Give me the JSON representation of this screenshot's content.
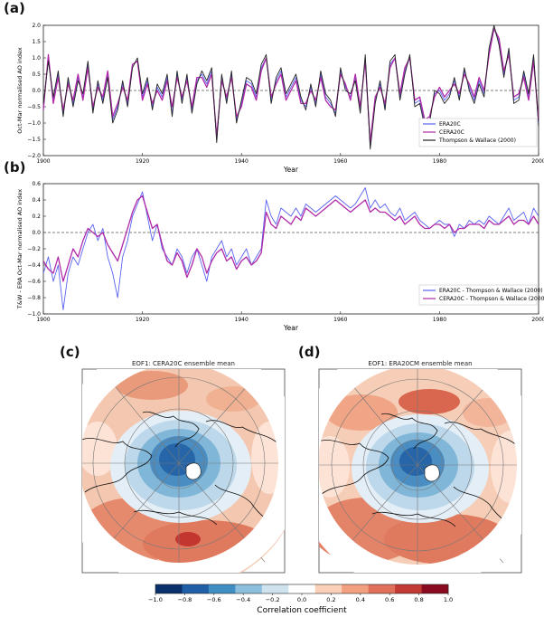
{
  "chart_data": [
    {
      "type": "line",
      "panel": "(a)",
      "title": "",
      "xlabel": "Year",
      "ylabel": "Oct-Mar normalised AO index",
      "xlim": [
        1900,
        2000
      ],
      "ylim": [
        -2.0,
        2.0
      ],
      "xticks": [
        1900,
        1920,
        1940,
        1960,
        1980,
        2000
      ],
      "yticks": [
        -2.0,
        -1.5,
        -1.0,
        -0.5,
        0.0,
        0.5,
        1.0,
        1.5,
        2.0
      ],
      "ytick_labels": [
        "−2.0",
        "−1.5",
        "−1.0",
        "−0.5",
        "0.0",
        "0.5",
        "1.0",
        "1.5",
        "2.0"
      ],
      "zero_line": "dashed",
      "legend_position": "bottom-right",
      "legend": [
        "ERA20C",
        "CERA20C",
        "Thompson & Wallace (2000)"
      ],
      "colors": {
        "ERA20C": "#5a62f0",
        "CERA20C": "#b02aa8",
        "Thompson & Wallace (2000)": "#222222"
      },
      "series": [
        {
          "name": "ERA20C",
          "values": [
            -0.5,
            1.0,
            -0.3,
            0.5,
            -0.7,
            0.3,
            -0.4,
            0.4,
            -0.2,
            0.8,
            -0.6,
            0.2,
            -0.3,
            0.5,
            -0.9,
            -0.5,
            0.2,
            -0.4,
            0.8,
            0.9,
            -0.2,
            0.3,
            -0.5,
            0.1,
            -0.2,
            0.4,
            -0.7,
            0.5,
            -0.3,
            0.4,
            -0.6,
            0.3,
            0.5,
            0.2,
            0.6,
            -1.5,
            0.4,
            -0.3,
            0.5,
            -0.9,
            -0.4,
            0.3,
            0.2,
            -0.2,
            0.7,
            1.0,
            -0.3,
            0.3,
            0.6,
            -0.2,
            0.1,
            0.4,
            -0.3,
            -0.5,
            0.1,
            -0.4,
            0.5,
            -0.2,
            -0.4,
            -0.7,
            0.6,
            0.1,
            -0.2,
            0.4,
            -0.6,
            1.0,
            -1.7,
            -0.3,
            0.2,
            -0.5,
            0.8,
            1.0,
            -0.2,
            0.6,
            1.0,
            -0.4,
            -0.3,
            -1.0,
            -0.9,
            -0.1,
            0.0,
            -0.3,
            -0.1,
            0.3,
            -0.2,
            0.6,
            0.1,
            -0.3,
            0.3,
            -0.1,
            1.2,
            1.9,
            1.5,
            0.5,
            1.2,
            -0.3,
            -0.2,
            0.5,
            -0.2,
            1.0,
            -1.0
          ]
        },
        {
          "name": "CERA20C",
          "values": [
            -0.6,
            1.1,
            -0.4,
            0.4,
            -0.6,
            0.2,
            -0.3,
            0.5,
            -0.3,
            0.7,
            -0.5,
            0.1,
            -0.2,
            0.6,
            -0.8,
            -0.4,
            0.1,
            -0.3,
            0.8,
            0.9,
            -0.3,
            0.2,
            -0.4,
            0.0,
            -0.3,
            0.3,
            -0.5,
            0.4,
            -0.2,
            0.3,
            -0.5,
            0.4,
            0.4,
            0.1,
            0.5,
            -1.4,
            0.3,
            -0.2,
            0.4,
            -0.8,
            -0.5,
            0.2,
            0.1,
            -0.3,
            0.6,
            1.0,
            -0.2,
            0.2,
            0.5,
            -0.3,
            0.0,
            0.3,
            -0.4,
            -0.4,
            0.0,
            -0.3,
            0.4,
            -0.3,
            -0.5,
            -0.6,
            0.5,
            0.2,
            -0.3,
            0.5,
            -0.5,
            0.9,
            -1.6,
            -0.2,
            0.1,
            -0.4,
            0.7,
            1.0,
            -0.1,
            0.7,
            1.0,
            -0.3,
            -0.2,
            -0.9,
            -0.8,
            -0.2,
            0.1,
            -0.2,
            0.0,
            0.2,
            -0.1,
            0.5,
            0.2,
            -0.2,
            0.4,
            0.0,
            1.1,
            1.9,
            1.6,
            0.6,
            1.1,
            -0.2,
            -0.1,
            0.4,
            -0.3,
            0.9,
            -0.9
          ]
        },
        {
          "name": "Thompson & Wallace (2000)",
          "values": [
            -0.4,
            0.9,
            -0.2,
            0.6,
            -0.8,
            0.4,
            -0.5,
            0.3,
            -0.1,
            0.9,
            -0.7,
            0.3,
            -0.4,
            0.4,
            -1.0,
            -0.6,
            0.3,
            -0.5,
            0.7,
            1.0,
            -0.1,
            0.4,
            -0.6,
            0.2,
            -0.1,
            0.5,
            -0.8,
            0.6,
            -0.4,
            0.5,
            -0.7,
            0.2,
            0.6,
            0.3,
            0.7,
            -1.6,
            0.5,
            -0.4,
            0.6,
            -1.0,
            -0.3,
            0.4,
            0.3,
            -0.1,
            0.8,
            1.1,
            -0.4,
            0.4,
            0.7,
            -0.1,
            0.2,
            0.5,
            -0.2,
            -0.6,
            0.2,
            -0.5,
            0.6,
            -0.1,
            -0.3,
            -0.8,
            0.7,
            0.0,
            -0.1,
            0.3,
            -0.7,
            1.1,
            -1.8,
            -0.4,
            0.3,
            -0.6,
            0.9,
            1.1,
            -0.3,
            0.5,
            1.1,
            -0.5,
            -0.4,
            -1.1,
            -1.0,
            0.0,
            -0.1,
            -0.4,
            -0.2,
            0.4,
            -0.3,
            0.7,
            0.0,
            -0.4,
            0.2,
            -0.2,
            1.3,
            2.0,
            1.4,
            0.4,
            1.3,
            -0.4,
            -0.3,
            0.6,
            -0.1,
            1.1,
            -1.1
          ]
        }
      ]
    },
    {
      "type": "line",
      "panel": "(b)",
      "title": "",
      "xlabel": "Year",
      "ylabel": "T&W - ERA Oct-Mar normalised AO index",
      "xlim": [
        1900,
        2000
      ],
      "ylim": [
        -1.0,
        0.6
      ],
      "xticks": [
        1900,
        1920,
        1940,
        1960,
        1980,
        2000
      ],
      "yticks": [
        -1.0,
        -0.8,
        -0.6,
        -0.4,
        -0.2,
        0.0,
        0.2,
        0.4,
        0.6
      ],
      "ytick_labels": [
        "−1.0",
        "−0.8",
        "−0.6",
        "−0.4",
        "−0.2",
        "0.0",
        "0.2",
        "0.4",
        "0.6"
      ],
      "zero_line": "dashed",
      "legend_position": "bottom-right",
      "legend": [
        "ERA20C - Thompson & Wallace (2000)",
        "CERA20C - Thompson & Wallace (2000)"
      ],
      "colors": {
        "ERA20C - Thompson & Wallace (2000)": "#5a62f0",
        "CERA20C - Thompson & Wallace (2000)": "#b02aa8"
      },
      "series": [
        {
          "name": "ERA20C - Thompson & Wallace (2000)",
          "values": [
            -0.5,
            -0.3,
            -0.6,
            -0.4,
            -0.95,
            -0.5,
            -0.3,
            -0.4,
            -0.2,
            0.0,
            0.1,
            -0.1,
            0.05,
            -0.3,
            -0.5,
            -0.8,
            -0.3,
            -0.1,
            0.2,
            0.35,
            0.5,
            0.2,
            -0.1,
            0.1,
            -0.2,
            -0.3,
            -0.4,
            -0.2,
            -0.3,
            -0.5,
            -0.3,
            -0.2,
            -0.4,
            -0.6,
            -0.3,
            -0.2,
            -0.1,
            -0.3,
            -0.2,
            -0.4,
            -0.3,
            -0.2,
            -0.4,
            -0.3,
            -0.2,
            0.4,
            0.2,
            0.1,
            0.3,
            0.25,
            0.2,
            0.3,
            0.2,
            0.35,
            0.3,
            0.25,
            0.3,
            0.35,
            0.4,
            0.45,
            0.4,
            0.35,
            0.3,
            0.35,
            0.45,
            0.55,
            0.3,
            0.4,
            0.3,
            0.35,
            0.25,
            0.2,
            0.3,
            0.15,
            0.2,
            0.25,
            0.15,
            0.1,
            0.05,
            0.1,
            0.15,
            0.1,
            0.1,
            -0.05,
            0.1,
            0.05,
            0.15,
            0.1,
            0.15,
            0.1,
            0.2,
            0.15,
            0.1,
            0.2,
            0.3,
            0.15,
            0.2,
            0.25,
            0.1,
            0.3,
            0.2
          ]
        },
        {
          "name": "CERA20C - Thompson & Wallace (2000)",
          "values": [
            -0.35,
            -0.45,
            -0.5,
            -0.3,
            -0.6,
            -0.4,
            -0.2,
            -0.3,
            -0.1,
            0.05,
            0.0,
            -0.05,
            0.0,
            -0.15,
            -0.25,
            -0.35,
            -0.15,
            0.05,
            0.25,
            0.4,
            0.45,
            0.25,
            0.05,
            0.1,
            -0.15,
            -0.35,
            -0.4,
            -0.25,
            -0.35,
            -0.55,
            -0.4,
            -0.2,
            -0.3,
            -0.5,
            -0.35,
            -0.25,
            -0.2,
            -0.35,
            -0.3,
            -0.45,
            -0.35,
            -0.3,
            -0.4,
            -0.35,
            -0.25,
            0.25,
            0.1,
            0.05,
            0.2,
            0.15,
            0.1,
            0.2,
            0.15,
            0.3,
            0.25,
            0.2,
            0.25,
            0.3,
            0.35,
            0.4,
            0.35,
            0.3,
            0.25,
            0.3,
            0.35,
            0.4,
            0.25,
            0.3,
            0.25,
            0.25,
            0.2,
            0.15,
            0.2,
            0.1,
            0.15,
            0.2,
            0.1,
            0.05,
            0.05,
            0.1,
            0.1,
            0.05,
            0.1,
            0.0,
            0.05,
            0.05,
            0.1,
            0.1,
            0.1,
            0.05,
            0.15,
            0.1,
            0.1,
            0.15,
            0.2,
            0.1,
            0.15,
            0.15,
            0.1,
            0.2,
            0.1
          ]
        }
      ]
    },
    {
      "type": "heatmap",
      "panel": "(c)",
      "title": "EOF1: CERA20C ensemble mean",
      "projection": "north-polar stereographic"
    },
    {
      "type": "heatmap",
      "panel": "(d)",
      "title": "EOF1: ERA20CM ensemble mean",
      "projection": "north-polar stereographic"
    },
    {
      "type": "colorbar",
      "label": "Correlation coefficient",
      "ticks": [
        -1.0,
        -0.8,
        -0.6,
        -0.4,
        -0.2,
        0.0,
        0.2,
        0.4,
        0.6,
        0.8,
        1.0
      ],
      "tick_labels": [
        "−1.0",
        "−0.8",
        "−0.6",
        "−0.4",
        "−0.2",
        "0.0",
        "0.2",
        "0.4",
        "0.6",
        "0.8",
        "1.0"
      ],
      "colors": [
        "#08306b",
        "#1f5fa8",
        "#3f8ec4",
        "#8cbfdd",
        "#cfe3ef",
        "#ffffff",
        "#fbd0b8",
        "#f2a07f",
        "#e0705a",
        "#c23a33",
        "#8a0b1f"
      ]
    }
  ],
  "labels": {
    "a": "(a)",
    "b": "(b)",
    "c": "(c)",
    "d": "(d)"
  }
}
